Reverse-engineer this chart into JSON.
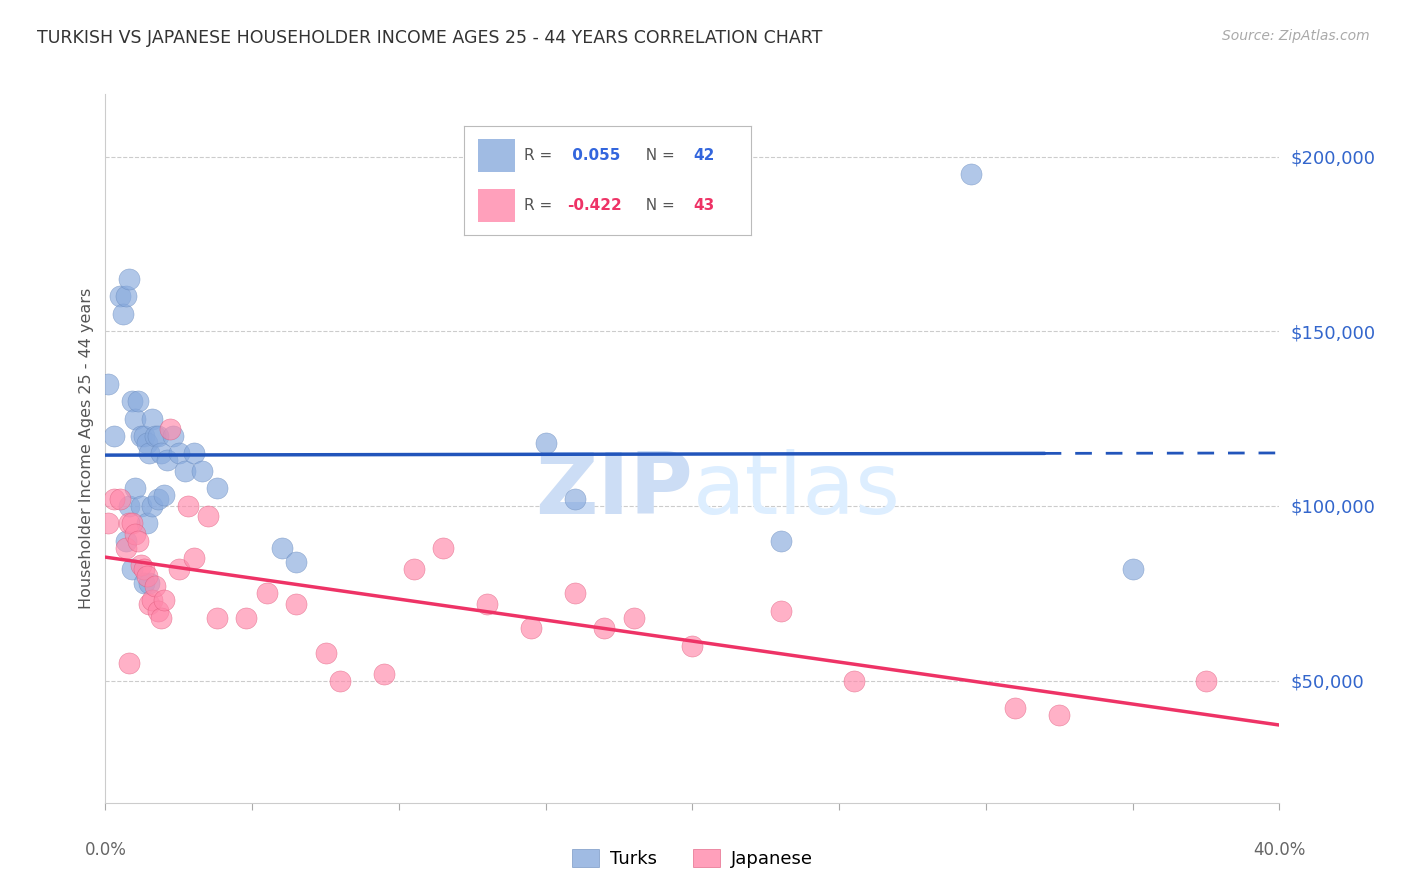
{
  "title": "TURKISH VS JAPANESE HOUSEHOLDER INCOME AGES 25 - 44 YEARS CORRELATION CHART",
  "source": "Source: ZipAtlas.com",
  "ylabel": "Householder Income Ages 25 - 44 years",
  "ytick_labels": [
    "$50,000",
    "$100,000",
    "$150,000",
    "$200,000"
  ],
  "ytick_values": [
    50000,
    100000,
    150000,
    200000
  ],
  "xmin": 0.0,
  "xmax": 0.4,
  "ymin": 15000,
  "ymax": 218000,
  "watermark_zip": "ZIP",
  "watermark_atlas": "atlas",
  "turks_color": "#88AADD",
  "turks_edge_color": "#6688BB",
  "japanese_color": "#FF88AA",
  "japanese_edge_color": "#DD5577",
  "turks_line_color": "#2255BB",
  "japanese_line_color": "#EE3366",
  "bottom_legend_labels": [
    "Turks",
    "Japanese"
  ],
  "turks_x": [
    0.001,
    0.003,
    0.005,
    0.006,
    0.007,
    0.008,
    0.009,
    0.01,
    0.011,
    0.012,
    0.013,
    0.014,
    0.015,
    0.016,
    0.017,
    0.018,
    0.019,
    0.021,
    0.023,
    0.025,
    0.027,
    0.03,
    0.033,
    0.038,
    0.008,
    0.01,
    0.012,
    0.014,
    0.016,
    0.018,
    0.02,
    0.06,
    0.065,
    0.15,
    0.16,
    0.23,
    0.295,
    0.35,
    0.007,
    0.009,
    0.013,
    0.015
  ],
  "turks_y": [
    135000,
    120000,
    160000,
    155000,
    160000,
    165000,
    130000,
    125000,
    130000,
    120000,
    120000,
    118000,
    115000,
    125000,
    120000,
    120000,
    115000,
    113000,
    120000,
    115000,
    110000,
    115000,
    110000,
    105000,
    100000,
    105000,
    100000,
    95000,
    100000,
    102000,
    103000,
    88000,
    84000,
    118000,
    102000,
    90000,
    195000,
    82000,
    90000,
    82000,
    78000,
    78000
  ],
  "japanese_x": [
    0.001,
    0.003,
    0.005,
    0.007,
    0.008,
    0.009,
    0.01,
    0.011,
    0.012,
    0.013,
    0.014,
    0.015,
    0.016,
    0.017,
    0.018,
    0.019,
    0.022,
    0.025,
    0.028,
    0.03,
    0.035,
    0.038,
    0.048,
    0.055,
    0.065,
    0.075,
    0.08,
    0.095,
    0.105,
    0.115,
    0.13,
    0.145,
    0.16,
    0.17,
    0.18,
    0.2,
    0.23,
    0.255,
    0.31,
    0.325,
    0.375,
    0.008,
    0.02
  ],
  "japanese_y": [
    95000,
    102000,
    102000,
    88000,
    95000,
    95000,
    92000,
    90000,
    83000,
    82000,
    80000,
    72000,
    73000,
    77000,
    70000,
    68000,
    122000,
    82000,
    100000,
    85000,
    97000,
    68000,
    68000,
    75000,
    72000,
    58000,
    50000,
    52000,
    82000,
    88000,
    72000,
    65000,
    75000,
    65000,
    68000,
    60000,
    70000,
    50000,
    42000,
    40000,
    50000,
    55000,
    73000
  ]
}
